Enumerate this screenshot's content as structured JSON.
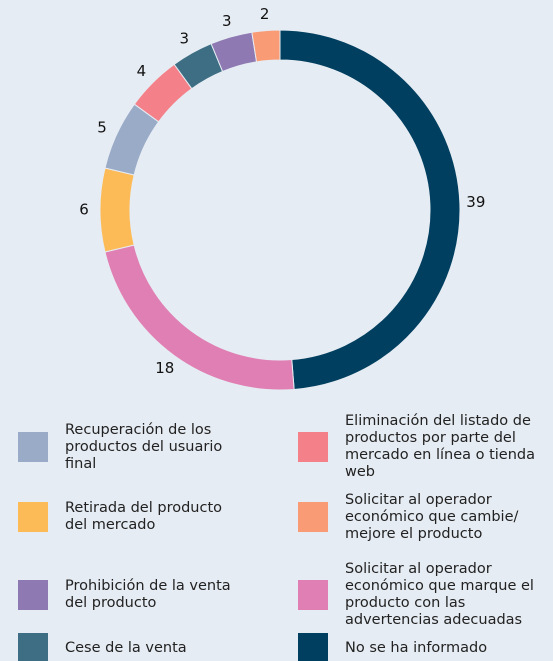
{
  "chart_data": {
    "type": "donut",
    "categories": [
      "No se ha informado",
      "Solicitar al operador económico que marque el producto con las advertencias adecuadas",
      "Retirada del producto del mercado",
      "Recuperación de los productos del usuario final",
      "Eliminación del listado de productos por parte del mercado en línea o tienda web",
      "Cese de la venta",
      "Prohibición de la venta del producto",
      "Solicitar al operador económico que cambie/ mejore el producto"
    ],
    "values": [
      39,
      18,
      6,
      5,
      4,
      3,
      3,
      2
    ],
    "colors": [
      "#003f5f",
      "#e07fb3",
      "#fdbb58",
      "#9aabc8",
      "#f48189",
      "#3d6e84",
      "#8e79b2",
      "#f99c76"
    ]
  }
}
